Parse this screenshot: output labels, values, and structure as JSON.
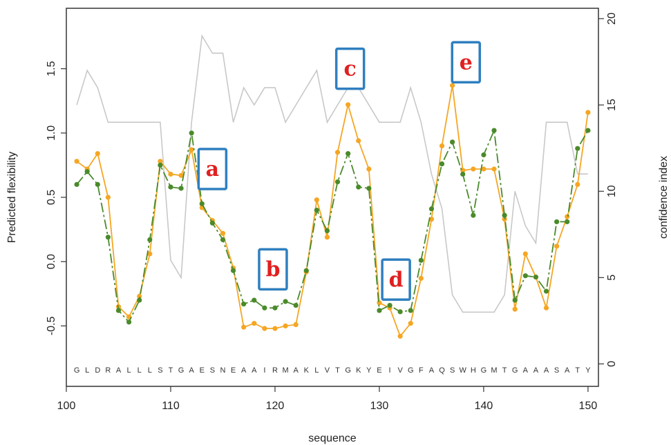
{
  "chart_data": {
    "type": "line",
    "xlabel": "sequence",
    "ylabel": "Predicted flexibility",
    "y2label": "confidence index",
    "xlim": [
      100,
      151
    ],
    "ylim": [
      -0.97,
      1.97
    ],
    "y2lim": [
      -1.3,
      20.6
    ],
    "xticks": [
      "100",
      "110",
      "120",
      "130",
      "140",
      "150"
    ],
    "yticks": [
      "-0.5",
      "0.0",
      "0.5",
      "1.0",
      "1.5"
    ],
    "y2ticks": [
      "0",
      "5",
      "10",
      "15",
      "20"
    ],
    "sequence_start": 101,
    "sequence": [
      "G",
      "L",
      "D",
      "R",
      "A",
      "L",
      "L",
      "L",
      "S",
      "T",
      "G",
      "A",
      "E",
      "S",
      "N",
      "E",
      "A",
      "A",
      "I",
      "R",
      "M",
      "A",
      "K",
      "L",
      "V",
      "T",
      "G",
      "K",
      "Y",
      "E",
      "I",
      "V",
      "G",
      "F",
      "A",
      "Q",
      "S",
      "W",
      "H",
      "G",
      "M",
      "T",
      "G",
      "A",
      "A",
      "A",
      "S",
      "A",
      "T",
      "Y"
    ],
    "series": [
      {
        "axis": "right",
        "color": "#c8c8c8",
        "values": [
          15,
          17,
          16,
          14,
          14,
          14,
          14,
          14,
          14,
          6,
          5,
          14,
          19,
          18,
          18,
          14,
          16,
          15,
          16,
          16,
          14,
          15,
          16,
          17,
          14,
          15,
          16,
          16,
          15,
          14,
          14,
          14,
          16,
          14,
          11,
          9,
          4,
          3,
          3,
          3,
          3,
          4,
          10,
          8,
          7,
          14,
          14,
          14,
          11,
          11
        ]
      },
      {
        "axis": "left",
        "color": "#f5a623",
        "values": [
          0.78,
          0.72,
          0.84,
          0.5,
          -0.35,
          -0.43,
          -0.27,
          0.06,
          0.78,
          0.68,
          0.67,
          0.87,
          0.42,
          0.32,
          0.22,
          -0.05,
          -0.51,
          -0.48,
          -0.52,
          -0.52,
          -0.5,
          -0.49,
          -0.08,
          0.48,
          0.19,
          0.85,
          1.22,
          0.94,
          0.72,
          -0.32,
          -0.36,
          -0.58,
          -0.48,
          -0.13,
          0.33,
          0.9,
          1.37,
          0.71,
          0.72,
          0.72,
          0.72,
          0.33,
          -0.37,
          0.06,
          -0.12,
          -0.36,
          0.12,
          0.35,
          0.6,
          1.16
        ]
      },
      {
        "axis": "left",
        "color": "#4a8a2a",
        "values": [
          0.6,
          0.7,
          0.6,
          0.19,
          -0.38,
          -0.47,
          -0.3,
          0.17,
          0.75,
          0.58,
          0.57,
          1.0,
          0.45,
          0.3,
          0.17,
          -0.07,
          -0.33,
          -0.3,
          -0.36,
          -0.36,
          -0.31,
          -0.34,
          -0.07,
          0.4,
          0.24,
          0.62,
          0.84,
          0.58,
          0.57,
          -0.38,
          -0.34,
          -0.39,
          -0.38,
          0.01,
          0.41,
          0.76,
          0.93,
          0.68,
          0.36,
          0.83,
          1.02,
          0.36,
          -0.3,
          -0.11,
          -0.12,
          -0.23,
          0.31,
          0.31,
          0.88,
          1.02
        ]
      }
    ],
    "annotations": [
      {
        "label": "a",
        "x": 114,
        "y": 0.72
      },
      {
        "label": "b",
        "x": 119.8,
        "y": -0.06
      },
      {
        "label": "c",
        "x": 127.2,
        "y": 1.5
      },
      {
        "label": "d",
        "x": 131.6,
        "y": -0.14
      },
      {
        "label": "e",
        "x": 138.3,
        "y": 1.55
      }
    ]
  }
}
